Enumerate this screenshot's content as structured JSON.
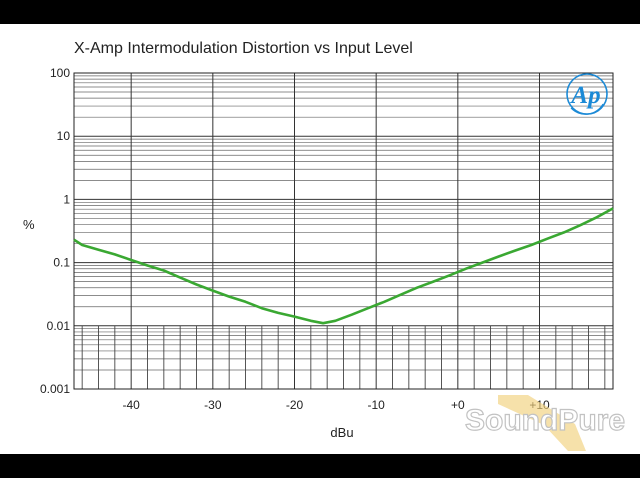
{
  "chart_data": {
    "type": "line",
    "title": "X-Amp Intermodulation Distortion vs Input Level",
    "xlabel": "dBu",
    "ylabel": "%",
    "xlim": [
      -47,
      19
    ],
    "ylim": [
      0.001,
      100
    ],
    "yscale": "log",
    "grid": true,
    "x_ticks": [
      -40,
      -30,
      -20,
      -10,
      0,
      10
    ],
    "x_tick_labels": [
      "-40",
      "-30",
      "-20",
      "-10",
      "+0",
      "+10"
    ],
    "y_ticks": [
      0.001,
      0.01,
      0.1,
      1,
      10,
      100
    ],
    "y_tick_labels": [
      "0.001",
      "0.01",
      "0.1",
      "1",
      "10",
      "100"
    ],
    "series": [
      {
        "color": "#3aa832",
        "x": [
          -47,
          -46,
          -44,
          -42,
          -40,
          -38,
          -36,
          -34,
          -32,
          -30,
          -28,
          -26,
          -24,
          -22,
          -20,
          -18,
          -16.5,
          -15,
          -13,
          -11,
          -9,
          -7,
          -5,
          -3,
          -1,
          1,
          3,
          5,
          7,
          9,
          11,
          13,
          15,
          17,
          19
        ],
        "y": [
          0.23,
          0.19,
          0.16,
          0.135,
          0.11,
          0.09,
          0.075,
          0.058,
          0.045,
          0.036,
          0.029,
          0.024,
          0.019,
          0.016,
          0.014,
          0.012,
          0.011,
          0.012,
          0.015,
          0.019,
          0.024,
          0.031,
          0.04,
          0.05,
          0.063,
          0.08,
          0.1,
          0.125,
          0.155,
          0.19,
          0.24,
          0.3,
          0.39,
          0.52,
          0.72
        ]
      }
    ]
  },
  "logo": {
    "text": "Ap",
    "color": "#1c8ad6"
  },
  "watermark": {
    "text": "SoundPure"
  }
}
